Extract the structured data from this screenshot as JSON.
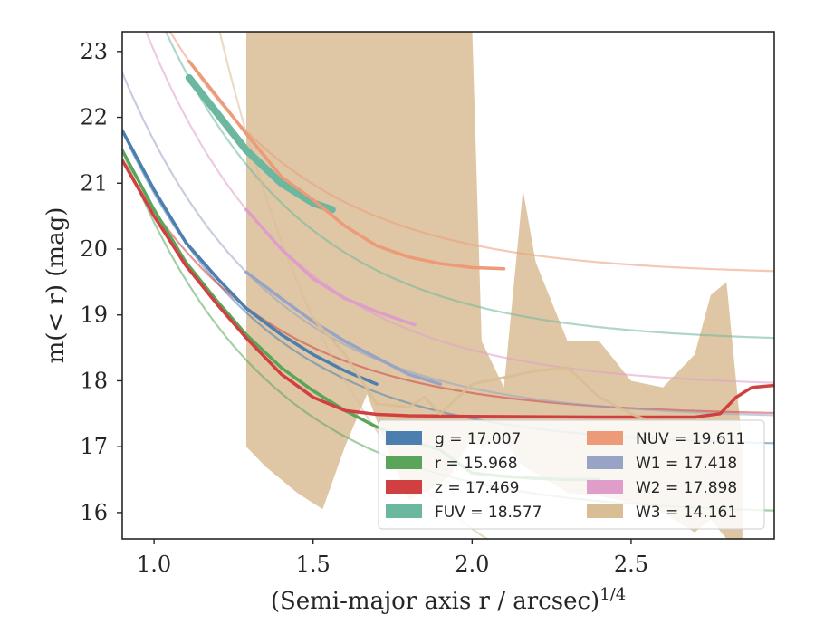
{
  "chart_data": {
    "type": "line",
    "title": "",
    "xlabel": "(Semi-major axis r / arcsec)^{1/4}",
    "ylabel": "m(< r) (mag)",
    "xlim": [
      0.9,
      2.95
    ],
    "ylim": [
      23.3,
      15.6
    ],
    "y_inverted": true,
    "grid": false,
    "x_ticks": [
      "1.0",
      "1.5",
      "2.0",
      "2.5"
    ],
    "y_ticks": [
      "16",
      "17",
      "18",
      "19",
      "20",
      "21",
      "22",
      "23"
    ],
    "legend_position": "lower-right",
    "series": [
      {
        "name": "g = 17.007",
        "legend_label": "g = 17.007",
        "color": "#4c7fae",
        "asymptote": 17.0,
        "data": [
          [
            0.9,
            21.8
          ],
          [
            1.0,
            20.9
          ],
          [
            1.1,
            20.1
          ],
          [
            1.2,
            19.55
          ],
          [
            1.29,
            19.1
          ],
          [
            1.4,
            18.7
          ],
          [
            1.5,
            18.4
          ],
          [
            1.6,
            18.15
          ],
          [
            1.7,
            17.95
          ]
        ]
      },
      {
        "name": "r = 15.968",
        "legend_label": "r = 15.968",
        "color": "#5aa55a",
        "asymptote": 15.97,
        "data": [
          [
            0.9,
            21.5
          ],
          [
            1.0,
            20.6
          ],
          [
            1.1,
            19.8
          ],
          [
            1.2,
            19.2
          ],
          [
            1.29,
            18.7
          ],
          [
            1.4,
            18.2
          ],
          [
            1.5,
            17.85
          ],
          [
            1.6,
            17.55
          ],
          [
            1.7,
            17.3
          ],
          [
            1.8,
            17.1
          ],
          [
            1.9,
            16.95
          ],
          [
            2.0,
            16.6
          ],
          [
            2.1,
            16.55
          ],
          [
            2.2,
            16.52
          ],
          [
            2.3,
            16.5
          ],
          [
            2.4,
            16.5
          ]
        ]
      },
      {
        "name": "z = 17.469",
        "legend_label": "z = 17.469",
        "color": "#d14040",
        "asymptote": 17.47,
        "data": [
          [
            0.9,
            21.35
          ],
          [
            1.0,
            20.5
          ],
          [
            1.1,
            19.75
          ],
          [
            1.2,
            19.15
          ],
          [
            1.29,
            18.65
          ],
          [
            1.4,
            18.1
          ],
          [
            1.5,
            17.75
          ],
          [
            1.6,
            17.55
          ],
          [
            1.7,
            17.49
          ],
          [
            1.8,
            17.47
          ],
          [
            2.0,
            17.46
          ],
          [
            2.4,
            17.45
          ],
          [
            2.7,
            17.45
          ],
          [
            2.78,
            17.5
          ],
          [
            2.83,
            17.75
          ],
          [
            2.88,
            17.9
          ],
          [
            2.95,
            17.93
          ]
        ]
      },
      {
        "name": "FUV = 18.577",
        "legend_label": "FUV = 18.577",
        "color": "#6bb79f",
        "asymptote": 18.58,
        "data": [
          [
            1.11,
            22.6
          ],
          [
            1.2,
            22.05
          ],
          [
            1.29,
            21.5
          ],
          [
            1.4,
            21.0
          ],
          [
            1.5,
            20.7
          ],
          [
            1.56,
            20.6
          ]
        ]
      },
      {
        "name": "NUV = 19.611",
        "legend_label": "NUV = 19.611",
        "color": "#ec9a78",
        "asymptote": 19.61,
        "data": [
          [
            1.11,
            22.85
          ],
          [
            1.2,
            22.3
          ],
          [
            1.29,
            21.75
          ],
          [
            1.4,
            21.1
          ],
          [
            1.5,
            20.75
          ],
          [
            1.6,
            20.35
          ],
          [
            1.7,
            20.05
          ],
          [
            1.8,
            19.88
          ],
          [
            1.9,
            19.78
          ],
          [
            2.0,
            19.72
          ],
          [
            2.1,
            19.7
          ]
        ]
      },
      {
        "name": "W1 = 17.418",
        "legend_label": "W1 = 17.418",
        "color": "#97a4c5",
        "asymptote": 17.42,
        "data": [
          [
            1.29,
            19.65
          ],
          [
            1.4,
            19.25
          ],
          [
            1.5,
            18.9
          ],
          [
            1.6,
            18.6
          ],
          [
            1.7,
            18.35
          ],
          [
            1.8,
            18.1
          ],
          [
            1.9,
            17.95
          ]
        ]
      },
      {
        "name": "W2 = 17.898",
        "legend_label": "W2 = 17.898",
        "color": "#df9ec9",
        "asymptote": 17.9,
        "data": [
          [
            1.29,
            20.6
          ],
          [
            1.4,
            20.0
          ],
          [
            1.5,
            19.55
          ],
          [
            1.6,
            19.25
          ],
          [
            1.7,
            19.05
          ],
          [
            1.82,
            18.85
          ]
        ]
      },
      {
        "name": "W3 = 14.161",
        "legend_label": "W3 = 14.161",
        "color": "#d9bd95",
        "asymptote": 14.16,
        "band_x": [
          1.29,
          1.35,
          1.45,
          1.53,
          1.6,
          1.67,
          1.73,
          1.8,
          1.87,
          1.93,
          2.0,
          2.03,
          2.1,
          2.16,
          2.2,
          2.3,
          2.4,
          2.5,
          2.6,
          2.7,
          2.75,
          2.8,
          2.85
        ],
        "band_upper": [
          17.0,
          16.7,
          16.3,
          16.05,
          17.0,
          17.8,
          17.0,
          16.2,
          16.35,
          16.55,
          17.15,
          17.0,
          17.1,
          16.7,
          16.6,
          16.3,
          16.25,
          16.15,
          16.0,
          15.7,
          15.9,
          15.6,
          15.5
        ],
        "band_lower": [
          23.4,
          23.4,
          23.4,
          23.4,
          23.4,
          23.4,
          23.4,
          23.4,
          23.4,
          23.4,
          23.4,
          18.6,
          17.9,
          20.9,
          19.8,
          18.6,
          18.6,
          18.0,
          17.9,
          18.4,
          19.3,
          19.5,
          17.0
        ],
        "data": [
          [
            1.5,
            18.95
          ],
          [
            1.6,
            18.4
          ],
          [
            1.7,
            17.65
          ],
          [
            1.8,
            17.6
          ],
          [
            1.85,
            17.75
          ],
          [
            1.9,
            17.5
          ],
          [
            2.0,
            17.95
          ],
          [
            2.1,
            18.05
          ],
          [
            2.2,
            18.15
          ],
          [
            2.3,
            18.2
          ],
          [
            2.4,
            17.75
          ],
          [
            2.5,
            17.5
          ],
          [
            2.6,
            17.3
          ],
          [
            2.7,
            17.3
          ],
          [
            2.8,
            17.3
          ]
        ]
      }
    ]
  }
}
